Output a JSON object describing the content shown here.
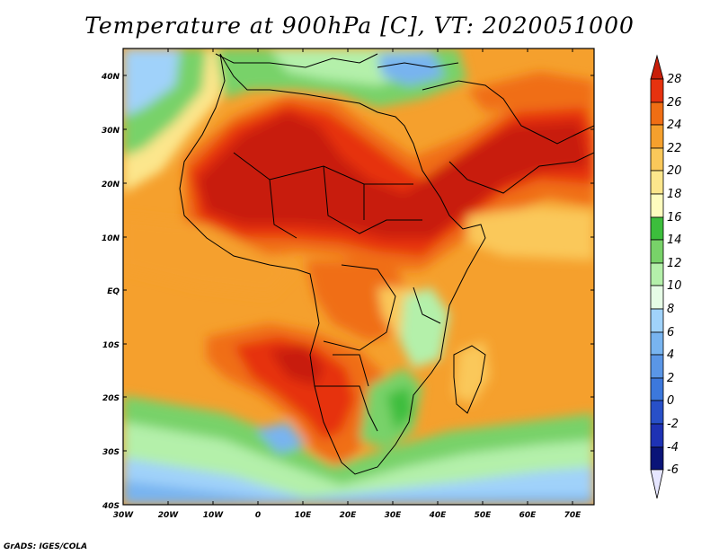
{
  "title": "Temperature at 900hPa [C], VT: 2020051000",
  "credit": "GrADS: IGES/COLA",
  "map": {
    "lat_ticks": [
      "40N",
      "30N",
      "20N",
      "10N",
      "EQ",
      "10S",
      "20S",
      "30S",
      "40S"
    ],
    "lon_ticks": [
      "30W",
      "20W",
      "10W",
      "0",
      "10E",
      "20E",
      "30E",
      "40E",
      "50E",
      "60E",
      "70E"
    ]
  },
  "colorbar": {
    "levels": [
      "28",
      "26",
      "24",
      "22",
      "20",
      "18",
      "16",
      "14",
      "12",
      "10",
      "8",
      "6",
      "4",
      "2",
      "0",
      "-2",
      "-4",
      "-6"
    ],
    "colors": {
      "gt28": "#c81e0a",
      "26_28": "#e6320f",
      "24_26": "#f06e14",
      "22_24": "#f5a02d",
      "20_22": "#fac85a",
      "18_20": "#fce68c",
      "16_18": "#fefcbe",
      "14_16": "#3cbe3c",
      "12_14": "#78d269",
      "10_12": "#b4f0aa",
      "8_10": "#e6fce6",
      "6_8": "#a0d2fa",
      "4_6": "#78b4f0",
      "2_4": "#5a96e6",
      "0_2": "#3c78dc",
      "m2_0": "#2850c8",
      "m4_m2": "#1e32b4",
      "m6_m4": "#0a1478",
      "lt_m6": "#e6e6ff"
    }
  }
}
